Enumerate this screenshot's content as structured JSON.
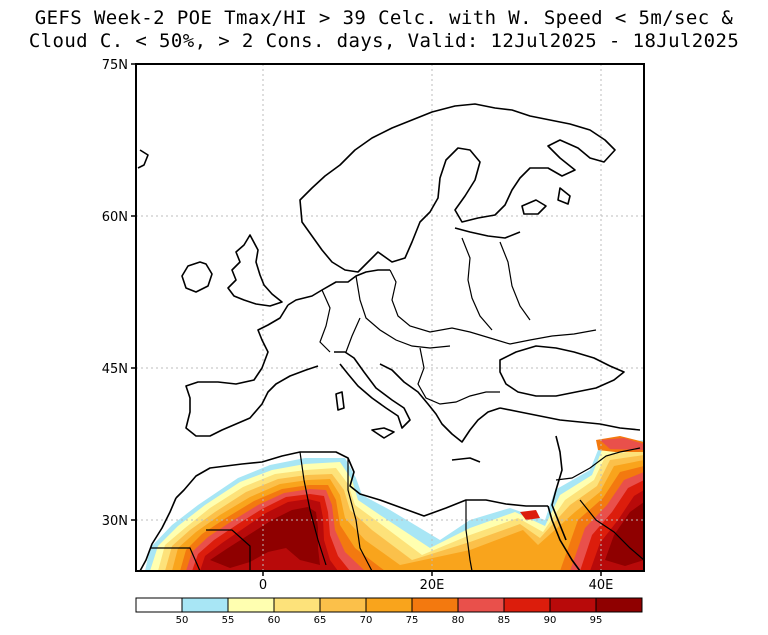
{
  "title": {
    "line1": "GEFS Week-2 POE Tmax/HI > 39 Celc. with W. Speed < 5m/sec &",
    "line2": "Cloud C. < 50%, > 2 Cons. days, Valid: 12Jul2025 - 18Jul2025"
  },
  "map": {
    "lat_labels": [
      "75N",
      "60N",
      "45N",
      "30N"
    ],
    "lon_labels": [
      "0",
      "20E",
      "40E"
    ],
    "grid": true,
    "projection": "lat-lon",
    "region": "Europe, North Africa and Middle East"
  },
  "colorbar": {
    "labels": [
      "50",
      "55",
      "60",
      "65",
      "70",
      "75",
      "80",
      "85",
      "90",
      "95"
    ],
    "colors": [
      "#ffffff",
      "#a8e6f5",
      "#ffffb0",
      "#fde27a",
      "#fbc04a",
      "#f9a41c",
      "#f3790f",
      "#e9504b",
      "#dc1d0c",
      "#b80a0a",
      "#8f0000"
    ]
  }
}
